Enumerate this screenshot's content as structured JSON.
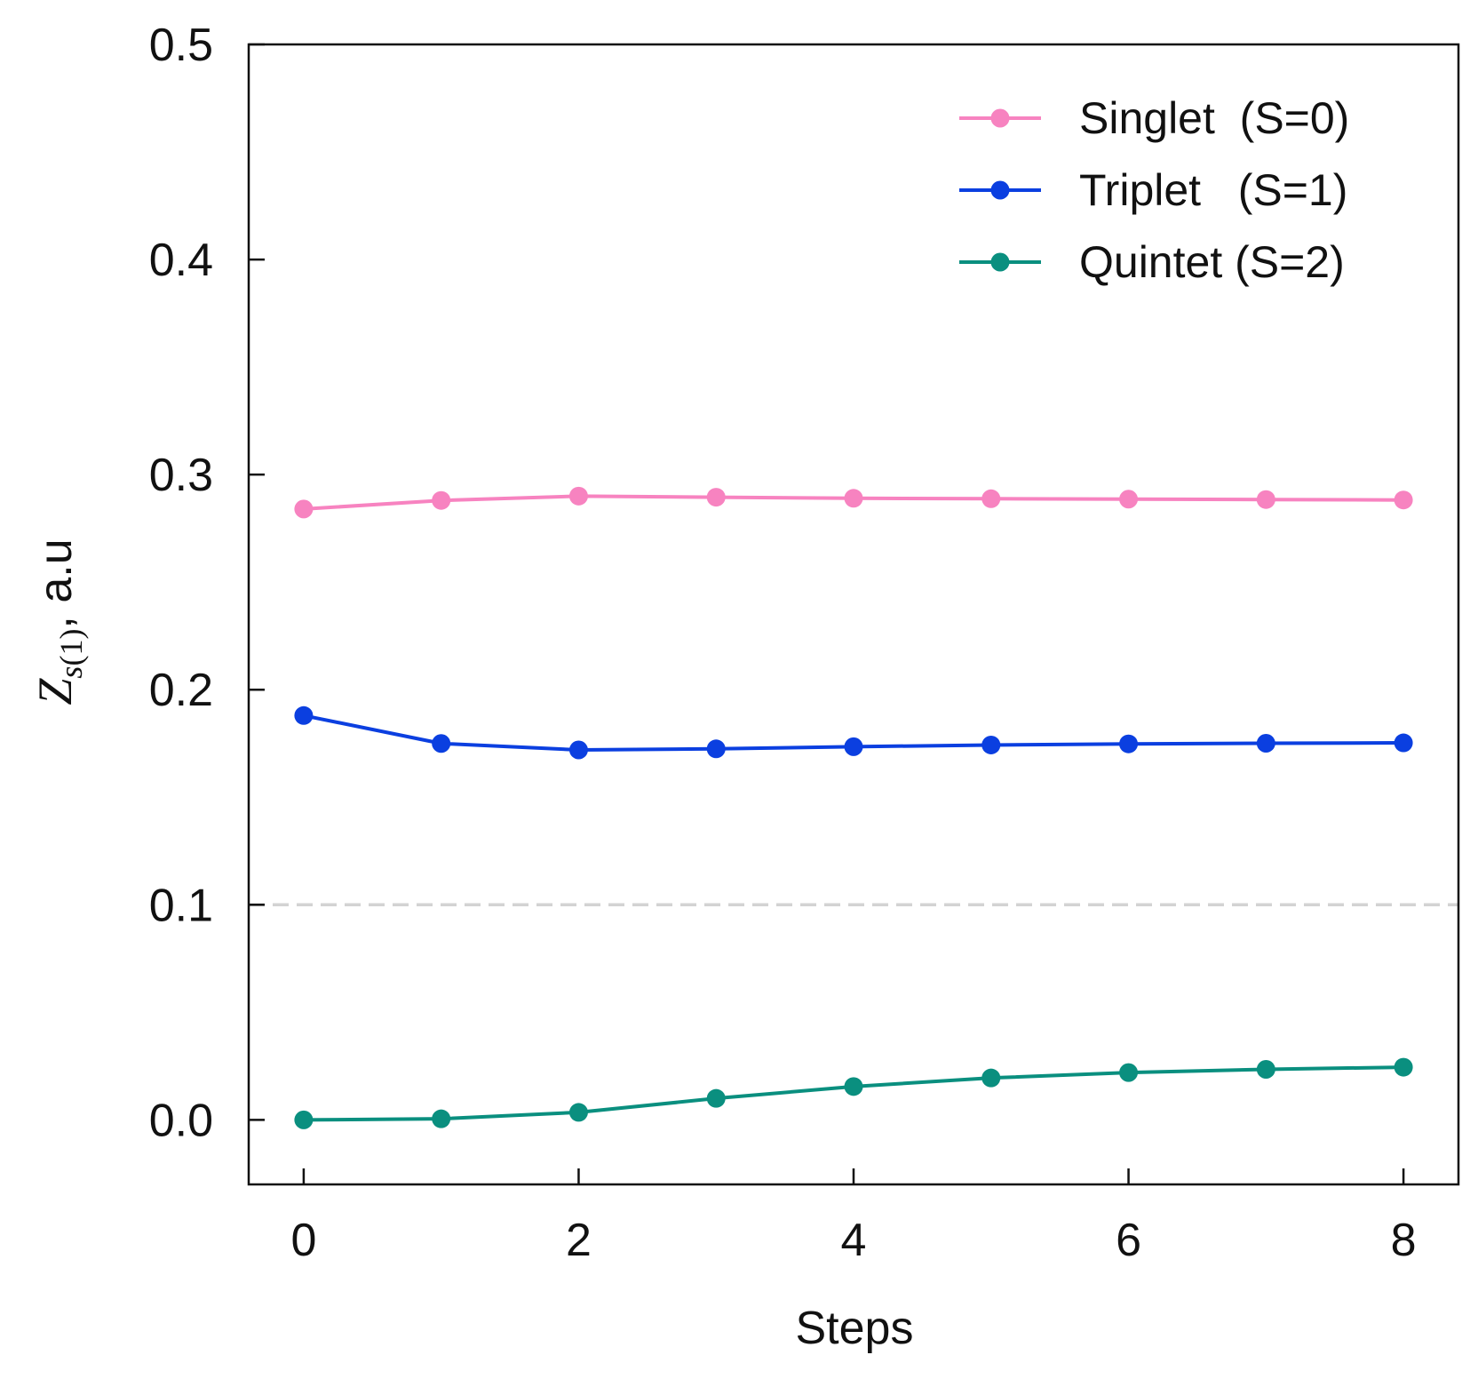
{
  "chart_data": {
    "type": "line",
    "title": "",
    "xlabel": "Steps",
    "ylabel": {
      "symbol": "Z",
      "subscript_var": "s",
      "subscript_arg": "(1)",
      "suffix": ", a.u"
    },
    "xlim": [
      -0.4,
      8.4
    ],
    "ylim": [
      -0.03,
      0.5
    ],
    "xticks": [
      0,
      2,
      4,
      6,
      8
    ],
    "xtick_labels": [
      "0",
      "2",
      "4",
      "6",
      "8"
    ],
    "yticks": [
      0.0,
      0.1,
      0.2,
      0.3,
      0.4,
      0.5
    ],
    "ytick_labels": [
      "0.0",
      "0.1",
      "0.2",
      "0.3",
      "0.4",
      "0.5"
    ],
    "grid": false,
    "reference_line": {
      "y": 0.1,
      "style": "dashed",
      "color": "#d3d3d3"
    },
    "legend_position": "top-right",
    "x": [
      0,
      1,
      2,
      3,
      4,
      5,
      6,
      7,
      8
    ],
    "series": [
      {
        "name": "Singlet  (S=0)",
        "color": "#f783c0",
        "values": [
          0.284,
          0.288,
          0.29,
          0.2895,
          0.289,
          0.2888,
          0.2886,
          0.2884,
          0.2882
        ]
      },
      {
        "name": "Triplet   (S=1)",
        "color": "#0b3fe0",
        "values": [
          0.188,
          0.175,
          0.172,
          0.1725,
          0.1735,
          0.1743,
          0.1748,
          0.1751,
          0.1753
        ]
      },
      {
        "name": "Quintet (S=2)",
        "color": "#0a8f7f",
        "values": [
          0.0,
          0.0005,
          0.0035,
          0.01,
          0.0155,
          0.0195,
          0.022,
          0.0235,
          0.0245
        ]
      }
    ]
  }
}
